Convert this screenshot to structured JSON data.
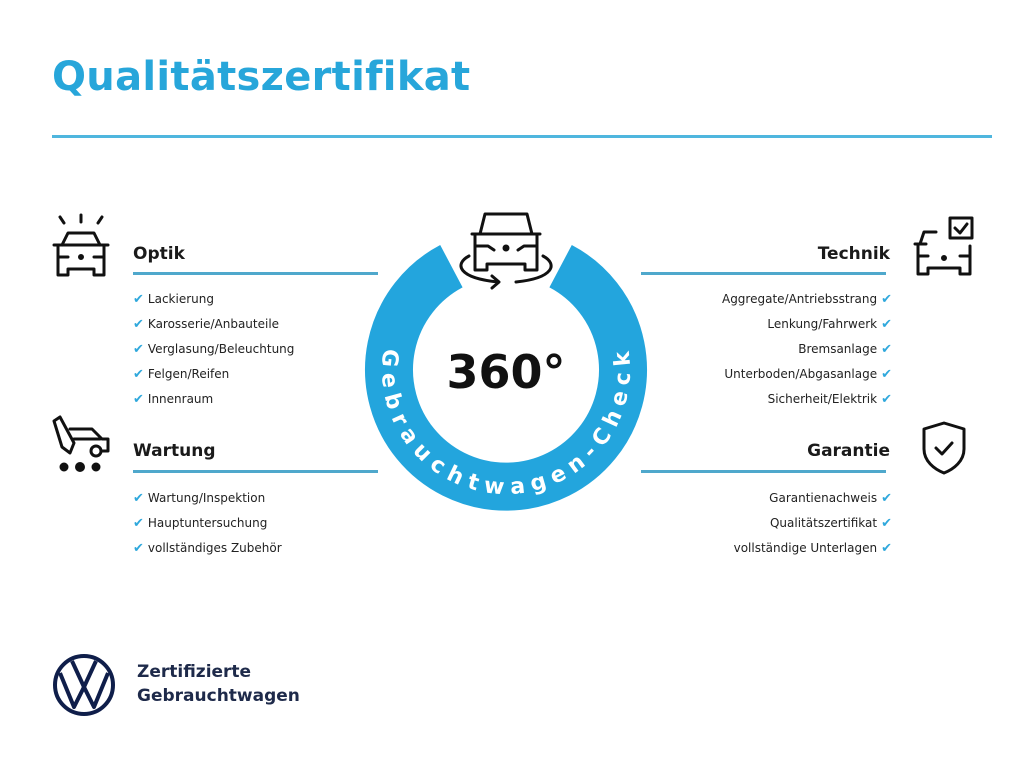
{
  "title": "Qualitätszertifikat",
  "accent_color": "#27a6da",
  "badge": {
    "number": "360°",
    "arc_text": "Gebrauchtwagen-Check",
    "icon": "car-rotate-icon"
  },
  "sections": {
    "optik": {
      "heading": "Optik",
      "icon": "car-lights-icon",
      "items": [
        "Lackierung",
        "Karosserie/Anbauteile",
        "Verglasung/Beleuchtung",
        "Felgen/Reifen",
        "Innenraum"
      ]
    },
    "wartung": {
      "heading": "Wartung",
      "icon": "service-car-icon",
      "items": [
        "Wartung/Inspektion",
        "Hauptuntersuchung",
        "vollständiges Zubehör"
      ]
    },
    "technik": {
      "heading": "Technik",
      "icon": "car-checklist-icon",
      "items": [
        "Aggregate/Antriebsstrang",
        "Lenkung/Fahrwerk",
        "Bremsanlage",
        "Unterboden/Abgasanlage",
        "Sicherheit/Elektrik"
      ]
    },
    "garantie": {
      "heading": "Garantie",
      "icon": "shield-check-icon",
      "items": [
        "Garantienachweis",
        "Qualitätszertifikat",
        "vollständige Unterlagen"
      ]
    }
  },
  "check_symbol": "✔",
  "brand": {
    "line1": "Zertifizierte",
    "line2": "Gebrauchtwagen",
    "logo": "vw-logo"
  }
}
